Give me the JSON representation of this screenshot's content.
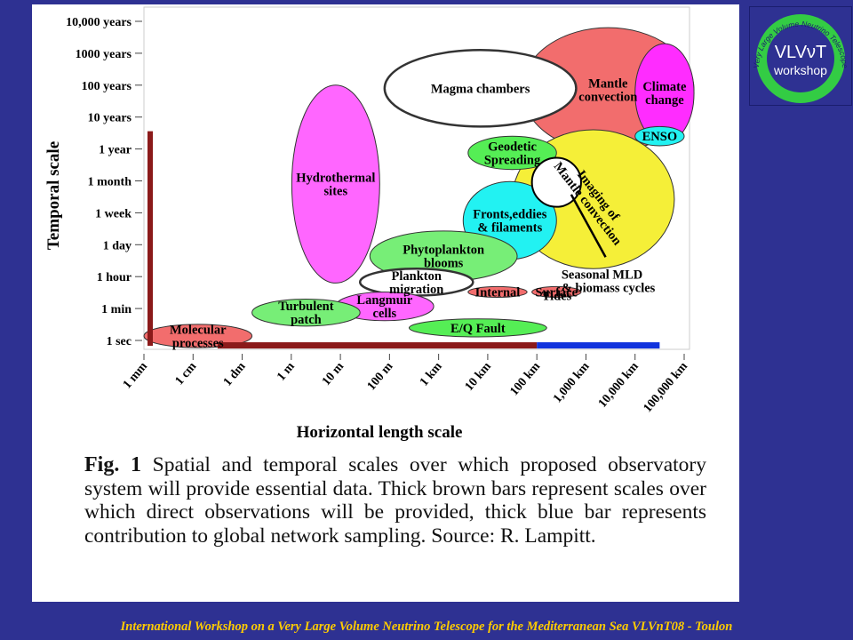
{
  "slide": {
    "background_color": "#2e3192",
    "panel_color": "#ffffff",
    "footer": "International Workshop on a Very Large Volume Neutrino Telescope for the Mediterranean Sea  VLVnT08 - Toulon"
  },
  "logo": {
    "ring_text": "Very Large Volume Neutrino Telescope",
    "title": "VLVνT",
    "subtitle": "workshop"
  },
  "caption": {
    "prefix": "Fig. 1",
    "text": "Spatial and temporal scales over which proposed observatory system will provide essential data. Thick brown bars represent scales over which direct observations will be provided, thick blue bar represents contribution to global network sampling. Source: R. Lampitt."
  },
  "chart_data": {
    "type": "scatter",
    "xlabel": "Horizontal length scale",
    "ylabel": "Temporal scale",
    "x_ticks": [
      "1 mm",
      "1 cm",
      "1 dm",
      "1 m",
      "10 m",
      "100 m",
      "1 km",
      "10 km",
      "100 km",
      "1,000 km",
      "10,000 km",
      "100,000 km"
    ],
    "y_ticks": [
      "1 sec",
      "1 min",
      "1 hour",
      "1 day",
      "1 week",
      "1 month",
      "1 year",
      "10 years",
      "100 years",
      "1000 years",
      "10,000 years"
    ],
    "x_log_m_range": [
      -3,
      8
    ],
    "y_log_s_range": [
      0,
      11.5
    ],
    "regions": [
      {
        "name": "Mantle convection",
        "x": [
          4.7,
          8.2
        ],
        "y": [
          7.4,
          11.3
        ],
        "color": "#f26d6d",
        "label_lines": [
          "Mantle",
          "convection"
        ],
        "text_color": "#000000"
      },
      {
        "name": "Imaging of Mantle convection",
        "x": [
          4.5,
          7.8
        ],
        "y": [
          3.9,
          8.1
        ],
        "color": "#f5ef38",
        "label_lines": [
          "Imaging of",
          "Mantle convection"
        ],
        "text_color": "#000000",
        "label_rotate": 52
      },
      {
        "name": "Climate change",
        "x": [
          7.0,
          8.2
        ],
        "y": [
          7.7,
          10.8
        ],
        "color": "#ff2cff",
        "label_lines": [
          "Climate",
          "change"
        ],
        "text_color": "#000000"
      },
      {
        "name": "Hydrothermal sites",
        "x": [
          0.01,
          1.8
        ],
        "y": [
          3.2,
          9.5
        ],
        "color": "#ff66ff",
        "label_lines": [
          "Hydrothermal",
          "sites"
        ],
        "text_color": "#000000"
      },
      {
        "name": "Magma chambers",
        "x": [
          1.9,
          5.8
        ],
        "y": [
          8.2,
          10.6
        ],
        "color": "#ffffff",
        "label_lines": [
          "Magma chambers"
        ],
        "text_color": "#000000"
      },
      {
        "name": "Geodetic Spreading",
        "x": [
          3.6,
          5.4
        ],
        "y": [
          6.8,
          7.9
        ],
        "color": "#55ee55",
        "label_lines": [
          "Geodetic",
          "Spreading"
        ],
        "text_color": "#000000"
      },
      {
        "name": "ENSO",
        "x": [
          7.0,
          8.0
        ],
        "y": [
          7.6,
          8.2
        ],
        "color": "#22f2f2",
        "label_lines": [
          "ENSO"
        ],
        "text_color": "#000000"
      },
      {
        "name": "Fronts,eddies & filaments",
        "x": [
          3.5,
          5.4
        ],
        "y": [
          4.3,
          6.4
        ],
        "color": "#22f2f2",
        "label_lines": [
          "Fronts,eddies",
          "& filaments"
        ],
        "text_color": "#000000"
      },
      {
        "name": "Phytoplankton blooms",
        "x": [
          1.6,
          4.6
        ],
        "y": [
          3.3,
          5.3
        ],
        "color": "#77ee77",
        "label_lines": [
          "Phytoplankton",
          "blooms"
        ],
        "text_color": "#000000"
      },
      {
        "name": "Plankton migration",
        "x": [
          1.4,
          3.7
        ],
        "y": [
          2.5,
          3.9
        ],
        "color": "#ffffff",
        "label_lines": [
          "Plankton",
          "migration"
        ],
        "text_color": "#000000"
      },
      {
        "name": "Internal Tides",
        "x": [
          3.6,
          4.8
        ],
        "y": [
          2.4,
          3.0
        ],
        "color": "#f26d6d",
        "label_lines": [
          "Internal"
        ],
        "text_color": "#000000"
      },
      {
        "name": "Surface Tides",
        "x": [
          4.9,
          5.9
        ],
        "y": [
          2.4,
          3.0
        ],
        "color": "#f26d6d",
        "label_lines": [
          "Surface"
        ],
        "text_color": "#000000"
      },
      {
        "name": "Langmuir cells",
        "x": [
          0.9,
          2.9
        ],
        "y": [
          1.1,
          2.7
        ],
        "color": "#ff66ff",
        "label_lines": [
          "Langmuir",
          "cells"
        ],
        "text_color": "#000000"
      },
      {
        "name": "Turbulent patch",
        "x": [
          -0.8,
          1.4
        ],
        "y": [
          0.8,
          2.3
        ],
        "color": "#77ee77",
        "label_lines": [
          "Turbulent",
          "patch"
        ],
        "text_color": "#000000"
      },
      {
        "name": "E/Q Fault",
        "x": [
          2.4,
          5.2
        ],
        "y": [
          0.2,
          1.2
        ],
        "color": "#55ee55",
        "label_lines": [
          "E/Q Fault"
        ],
        "text_color": "#000000"
      },
      {
        "name": "Molecular processes",
        "x": [
          -3.0,
          -0.8
        ],
        "y": [
          -0.4,
          0.9
        ],
        "color": "#f26d6d",
        "label_lines": [
          "Molecular",
          "processes"
        ],
        "text_color": "#000000"
      }
    ],
    "annotations": [
      {
        "text_lines": [
          "Seasonal MLD",
          "& biomass cycles"
        ],
        "at_x": 5.5,
        "at_y": 3.45,
        "circle_x": [
          4.9,
          5.9
        ],
        "circle_y": [
          5.9,
          7.2
        ],
        "line_to": [
          6.4,
          4.4
        ]
      },
      {
        "text_lines": [
          "Tides"
        ],
        "at_x": 5.1,
        "at_y": 2.25
      }
    ],
    "observation_bars": [
      {
        "name": "temporal brown bar",
        "orientation": "vertical",
        "x": -3.0,
        "y": [
          0,
          8
        ],
        "color": "#8b1a1a"
      },
      {
        "name": "spatial brown bar",
        "orientation": "horizontal",
        "x": [
          -1.5,
          5.0
        ],
        "y": -0.3,
        "color": "#8b1a1a"
      },
      {
        "name": "global network blue bar",
        "orientation": "horizontal",
        "x": [
          5.0,
          7.5
        ],
        "y": -0.3,
        "color": "#1133dd"
      }
    ]
  }
}
